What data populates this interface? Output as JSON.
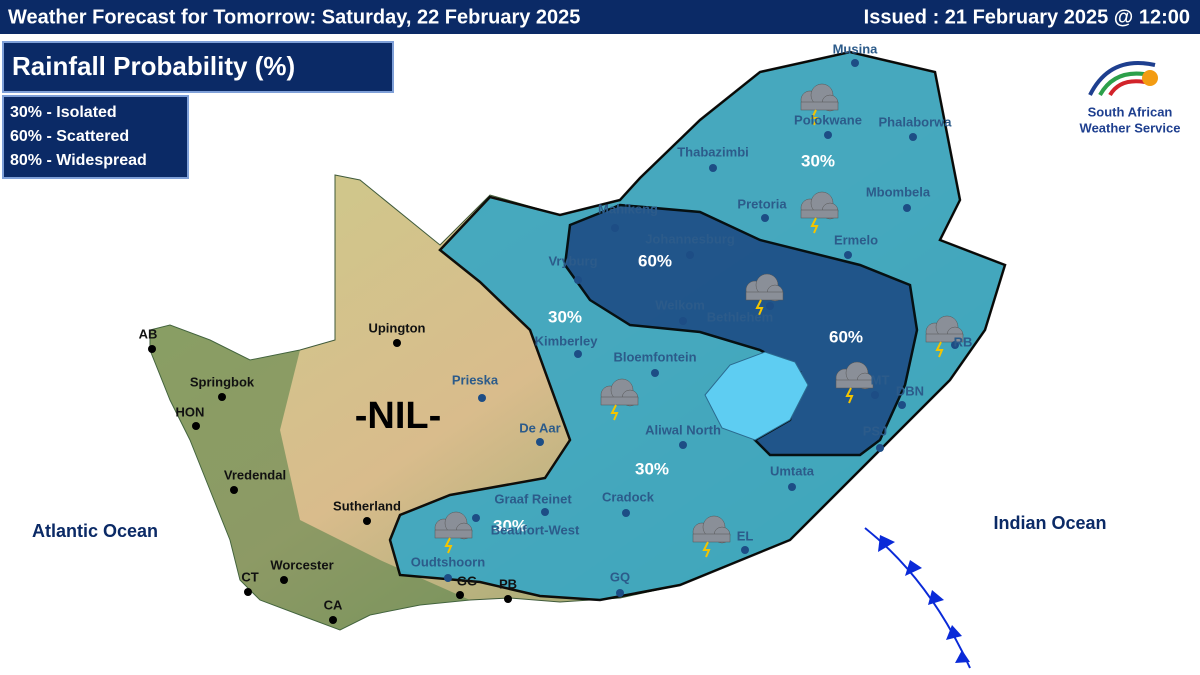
{
  "header": {
    "title": "Weather Forecast for Tomorrow: Saturday, 22 February 2025",
    "issued": "Issued : 21 February 2025 @ 12:00"
  },
  "panel": {
    "title": "Rainfall Probability (%)",
    "legend": [
      "30% - Isolated",
      "60% - Scattered",
      "80% - Widespread"
    ]
  },
  "logo": {
    "line1": "South African",
    "line2": "Weather Service"
  },
  "map": {
    "oceans": [
      "Atlantic Ocean",
      "Indian Ocean"
    ],
    "zones": [
      "30%",
      "30%",
      "30%",
      "30%",
      "60%",
      "60%",
      "-NIL-"
    ],
    "places": [
      "Musina",
      "Polokwane",
      "Phalaborwa",
      "Thabazimbi",
      "Pretoria",
      "Mbombela",
      "Mahikeng",
      "Johannesburg",
      "Ermelo",
      "Vryburg",
      "Welkom",
      "Bethlehem",
      "Kimberley",
      "Bloemfontein",
      "Upington",
      "AB",
      "Springbok",
      "Prieska",
      "HON",
      "De Aar",
      "Vredendal",
      "Aliwal North",
      "Umtata",
      "Sutherland",
      "Graaf Reinet",
      "Cradock",
      "Beaufort-West",
      "EL",
      "Worcester",
      "Oudtshoorn",
      "GG",
      "PB",
      "CT",
      "GQ",
      "CA",
      "RB",
      "MT",
      "DBN",
      "PSJ"
    ]
  }
}
